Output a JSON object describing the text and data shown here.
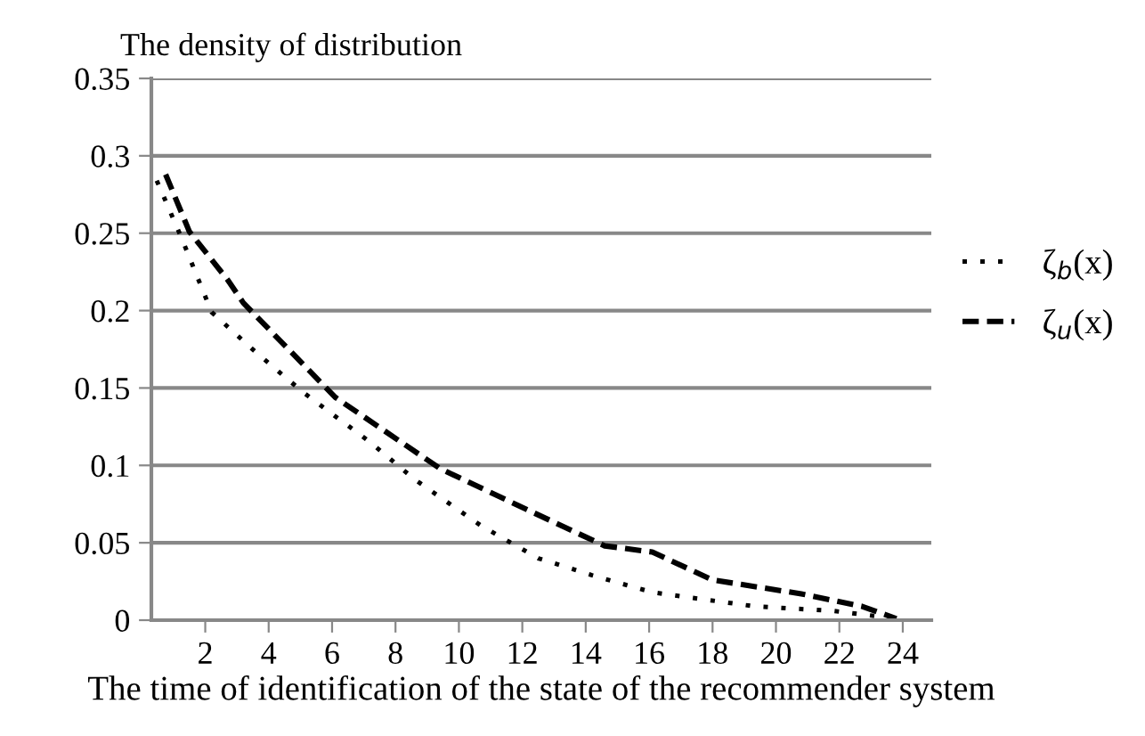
{
  "chart_data": {
    "type": "line",
    "ylabel": "The density of distribution",
    "xlabel": "The time of identification of the state of the recommender system",
    "series": [
      {
        "name": "ζ$_{b}$(x)",
        "color": "#000000",
        "line_style": "dotted",
        "x": [
          0.47,
          1.25,
          2.2,
          3.6,
          5.1,
          7.2,
          8.6,
          10.7,
          12.5,
          14.2,
          16.1,
          19.3,
          21.8,
          23.8
        ],
        "values": [
          0.284,
          0.247,
          0.199,
          0.173,
          0.147,
          0.115,
          0.091,
          0.061,
          0.04,
          0.029,
          0.018,
          0.009,
          0.006,
          0.001
        ]
      },
      {
        "name": "ζ$_{u}$(x)",
        "color": "#000000",
        "line_style": "dashed",
        "x": [
          0.75,
          1.5,
          2.7,
          3.2,
          6.1,
          9.4,
          12.4,
          14.6,
          16.1,
          18.0,
          20.8,
          22.7,
          23.8
        ],
        "values": [
          0.288,
          0.251,
          0.22,
          0.205,
          0.144,
          0.098,
          0.069,
          0.048,
          0.044,
          0.026,
          0.017,
          0.009,
          0.001
        ]
      }
    ],
    "xlim": [
      0.3,
      24.9
    ],
    "xticks": [
      2,
      4,
      6,
      8,
      10,
      12,
      14,
      16,
      18,
      20,
      22,
      24
    ],
    "ylim": [
      0,
      0.35
    ],
    "yticks": [
      0,
      0.05,
      0.1,
      0.15,
      0.2,
      0.25,
      0.3,
      0.35
    ],
    "grid": "y",
    "legend": "right",
    "marker": "none"
  }
}
